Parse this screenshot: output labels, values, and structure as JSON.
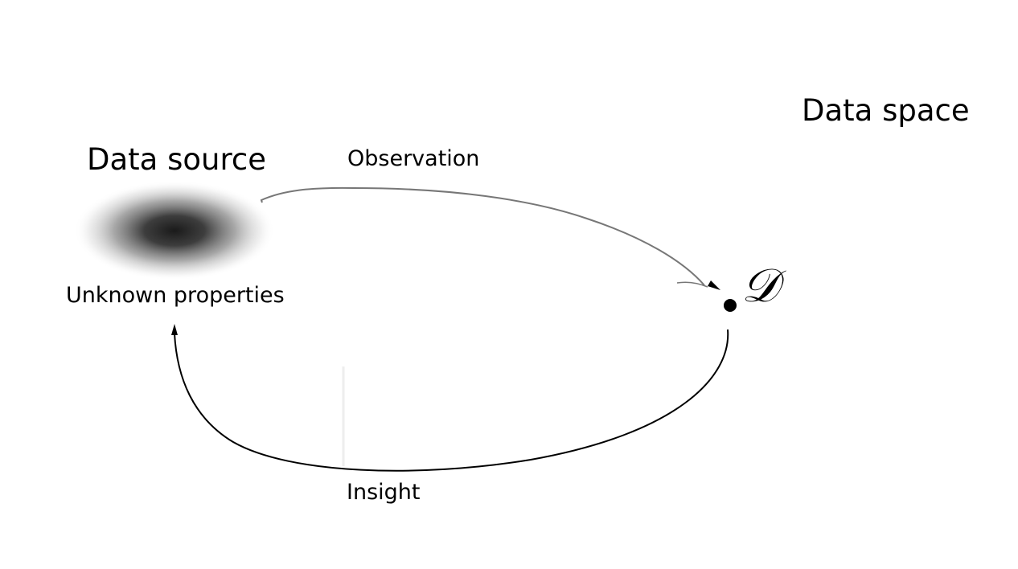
{
  "diagram": {
    "data_source_title": "Data source",
    "data_space_title": "Data space",
    "observation_label": "Observation",
    "unknown_properties_label": "Unknown properties",
    "insight_label": "Insight",
    "dataset_symbol": "𝒟"
  }
}
